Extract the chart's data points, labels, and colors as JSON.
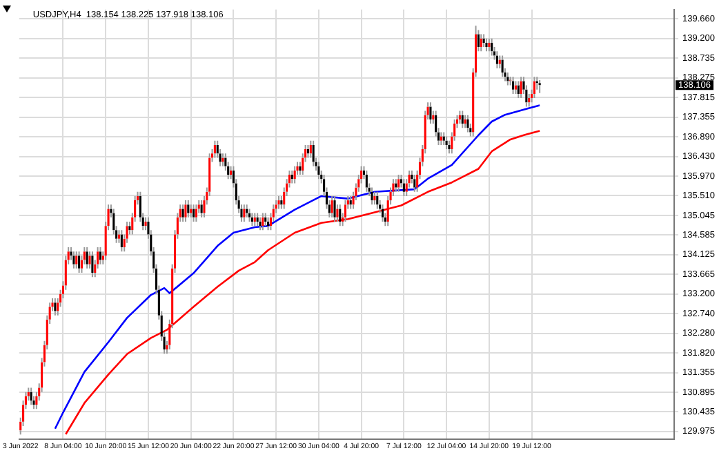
{
  "chart_data": {
    "type": "candlestick",
    "title": "USDJPY,H4  138.154 138.225 137.918 138.106",
    "categories": [
      "3 Jun 2022",
      null,
      null,
      null,
      null,
      null,
      null,
      null,
      null,
      null,
      null,
      null,
      null,
      null,
      null,
      null,
      "8 Jun 04:00",
      null,
      null,
      null,
      null,
      null,
      null,
      null,
      null,
      null,
      null,
      null,
      null,
      null,
      null,
      null,
      "10 Jun 20:00",
      null,
      null,
      null,
      null,
      null,
      null,
      null,
      null,
      null,
      null,
      null,
      null,
      null,
      null,
      null,
      "15 Jun 12:00",
      null,
      null,
      null,
      null,
      null,
      null,
      null,
      null,
      null,
      null,
      null,
      null,
      null,
      null,
      null,
      "20 Jun 04:00",
      null,
      null,
      null,
      null,
      null,
      null,
      null,
      null,
      null,
      null,
      null,
      null,
      null,
      null,
      null,
      "22 Jun 20:00",
      null,
      null,
      null,
      null,
      null,
      null,
      null,
      null,
      null,
      null,
      null,
      null,
      null,
      null,
      null,
      "27 Jun 12:00",
      null,
      null,
      null,
      null,
      null,
      null,
      null,
      null,
      null,
      null,
      null,
      null,
      null,
      null,
      null,
      "30 Jun 04:00",
      null,
      null,
      null,
      null,
      null,
      null,
      null,
      null,
      null,
      null,
      null,
      null,
      null,
      null,
      null,
      "4 Jul 20:00",
      null,
      null,
      null,
      null,
      null,
      null,
      null,
      null,
      null,
      null,
      null,
      null,
      null,
      null,
      null,
      "7 Jul 12:00",
      null,
      null,
      null,
      null,
      null,
      null,
      null,
      null,
      null,
      null,
      null,
      null,
      null,
      null,
      null,
      "12 Jul 04:00",
      null,
      null,
      null,
      null,
      null,
      null,
      null,
      null,
      null,
      null,
      null,
      null,
      null,
      null,
      null,
      "14 Jul 20:00",
      null,
      null,
      null,
      null,
      null,
      null,
      null,
      null,
      null,
      null,
      null,
      null,
      null,
      null,
      null,
      "19 Jul 12:00",
      null,
      null,
      null,
      null,
      null,
      null,
      null,
      null,
      null,
      null,
      null,
      null,
      null,
      null,
      null,
      null,
      null,
      null,
      null,
      null,
      null,
      null,
      null,
      null,
      null,
      null,
      null,
      null,
      null,
      null,
      null,
      null,
      null,
      null,
      null,
      null,
      null,
      null,
      null,
      null,
      null,
      null,
      null,
      null,
      null,
      null,
      null,
      null,
      null,
      null,
      null,
      null,
      null
    ],
    "ohlc": [
      [
        130.0,
        130.3,
        129.9,
        130.2
      ],
      [
        130.2,
        130.7,
        130.1,
        130.6
      ],
      [
        130.6,
        130.9,
        130.5,
        130.8
      ],
      [
        130.8,
        131.0,
        130.7,
        130.9
      ],
      [
        130.9,
        131.0,
        130.6,
        130.7
      ],
      [
        130.7,
        130.8,
        130.5,
        130.6
      ],
      [
        130.6,
        130.9,
        130.5,
        130.8
      ],
      [
        130.8,
        131.1,
        130.7,
        131.0
      ],
      [
        131.0,
        131.7,
        130.9,
        131.6
      ],
      [
        131.6,
        132.1,
        131.5,
        132.0
      ],
      [
        132.0,
        132.7,
        131.9,
        132.6
      ],
      [
        132.6,
        133.0,
        132.5,
        132.9
      ],
      [
        132.9,
        133.1,
        132.8,
        133.0
      ],
      [
        133.0,
        133.1,
        132.7,
        132.8
      ],
      [
        132.8,
        133.1,
        132.7,
        133.0
      ],
      [
        133.0,
        133.3,
        132.9,
        133.2
      ],
      [
        133.2,
        133.5,
        133.1,
        133.4
      ],
      [
        133.4,
        134.1,
        133.3,
        134.0
      ],
      [
        134.0,
        134.3,
        133.9,
        134.2
      ],
      [
        134.2,
        134.3,
        134.0,
        134.1
      ],
      [
        134.1,
        134.2,
        133.8,
        133.9
      ],
      [
        133.9,
        134.2,
        133.8,
        134.1
      ],
      [
        134.1,
        134.2,
        133.7,
        133.8
      ],
      [
        133.8,
        134.1,
        133.7,
        134.0
      ],
      [
        134.0,
        134.3,
        133.9,
        134.2
      ],
      [
        134.2,
        134.3,
        133.8,
        133.9
      ],
      [
        133.9,
        134.2,
        133.8,
        134.1
      ],
      [
        134.1,
        134.2,
        133.6,
        133.7
      ],
      [
        133.7,
        134.0,
        133.6,
        133.9
      ],
      [
        133.9,
        134.3,
        133.8,
        134.2
      ],
      [
        134.2,
        134.3,
        133.9,
        134.0
      ],
      [
        134.0,
        134.2,
        133.9,
        134.1
      ],
      [
        134.1,
        134.9,
        134.0,
        134.8
      ],
      [
        134.8,
        135.3,
        134.7,
        135.2
      ],
      [
        135.2,
        135.3,
        135.0,
        135.1
      ],
      [
        135.1,
        135.2,
        134.6,
        134.7
      ],
      [
        134.7,
        134.8,
        134.4,
        134.5
      ],
      [
        134.5,
        134.7,
        134.4,
        134.6
      ],
      [
        134.6,
        134.7,
        134.2,
        134.3
      ],
      [
        134.3,
        134.6,
        134.2,
        134.5
      ],
      [
        134.5,
        134.9,
        134.4,
        134.8
      ],
      [
        134.8,
        134.9,
        134.6,
        134.7
      ],
      [
        134.7,
        135.1,
        134.6,
        135.0
      ],
      [
        135.0,
        135.5,
        134.9,
        135.4
      ],
      [
        135.4,
        135.6,
        135.3,
        135.5
      ],
      [
        135.5,
        135.6,
        134.9,
        135.0
      ],
      [
        135.0,
        135.1,
        134.7,
        134.8
      ],
      [
        134.8,
        135.0,
        134.7,
        134.9
      ],
      [
        134.9,
        135.0,
        134.5,
        134.6
      ],
      [
        134.6,
        134.7,
        134.1,
        134.2
      ],
      [
        134.2,
        134.3,
        133.7,
        133.8
      ],
      [
        133.8,
        133.9,
        133.2,
        133.3
      ],
      [
        133.3,
        133.4,
        132.6,
        132.7
      ],
      [
        132.7,
        132.8,
        132.1,
        132.2
      ],
      [
        132.2,
        132.3,
        131.8,
        131.9
      ],
      [
        131.9,
        132.1,
        131.8,
        132.0
      ],
      [
        132.0,
        132.6,
        131.9,
        132.5
      ],
      [
        132.5,
        133.9,
        132.4,
        133.8
      ],
      [
        133.8,
        134.7,
        133.7,
        134.6
      ],
      [
        134.6,
        135.1,
        134.5,
        135.0
      ],
      [
        135.0,
        135.3,
        134.9,
        135.2
      ],
      [
        135.2,
        135.3,
        134.9,
        135.0
      ],
      [
        135.0,
        135.4,
        134.9,
        135.3
      ],
      [
        135.3,
        135.4,
        135.0,
        135.1
      ],
      [
        135.1,
        135.3,
        135.0,
        135.2
      ],
      [
        135.2,
        135.3,
        134.9,
        135.0
      ],
      [
        135.0,
        135.3,
        134.9,
        135.2
      ],
      [
        135.2,
        135.4,
        135.1,
        135.3
      ],
      [
        135.3,
        135.4,
        135.0,
        135.1
      ],
      [
        135.1,
        135.5,
        135.0,
        135.4
      ],
      [
        135.4,
        135.7,
        135.3,
        135.6
      ],
      [
        135.6,
        136.5,
        135.5,
        136.4
      ],
      [
        136.4,
        136.6,
        136.3,
        136.5
      ],
      [
        136.5,
        136.8,
        136.4,
        136.7
      ],
      [
        136.7,
        136.8,
        136.4,
        136.5
      ],
      [
        136.5,
        136.6,
        136.2,
        136.3
      ],
      [
        136.3,
        136.5,
        136.2,
        136.4
      ],
      [
        136.4,
        136.5,
        136.1,
        136.2
      ],
      [
        136.2,
        136.3,
        135.9,
        136.0
      ],
      [
        136.0,
        136.2,
        135.9,
        136.1
      ],
      [
        136.1,
        136.2,
        135.7,
        135.8
      ],
      [
        135.8,
        135.9,
        135.3,
        135.4
      ],
      [
        135.4,
        135.5,
        135.1,
        135.2
      ],
      [
        135.2,
        135.3,
        134.9,
        135.0
      ],
      [
        135.0,
        135.3,
        134.9,
        135.2
      ],
      [
        135.2,
        135.3,
        135.0,
        135.1
      ],
      [
        135.1,
        135.2,
        134.9,
        135.0
      ],
      [
        135.0,
        135.1,
        134.8,
        134.9
      ],
      [
        134.9,
        135.1,
        134.8,
        135.0
      ],
      [
        135.0,
        135.1,
        134.8,
        134.9
      ],
      [
        134.9,
        135.0,
        134.7,
        134.8
      ],
      [
        134.8,
        135.1,
        134.7,
        135.0
      ],
      [
        135.0,
        135.1,
        134.8,
        134.9
      ],
      [
        134.9,
        135.0,
        134.7,
        134.8
      ],
      [
        134.8,
        135.1,
        134.7,
        135.0
      ],
      [
        135.0,
        135.3,
        134.9,
        135.2
      ],
      [
        135.2,
        135.4,
        135.1,
        135.3
      ],
      [
        135.3,
        135.5,
        135.2,
        135.4
      ],
      [
        135.4,
        135.5,
        135.2,
        135.3
      ],
      [
        135.3,
        135.7,
        135.2,
        135.6
      ],
      [
        135.6,
        135.9,
        135.5,
        135.8
      ],
      [
        135.8,
        136.1,
        135.7,
        136.0
      ],
      [
        136.0,
        136.1,
        135.8,
        135.9
      ],
      [
        135.9,
        136.2,
        135.8,
        136.1
      ],
      [
        136.1,
        136.3,
        136.0,
        136.2
      ],
      [
        136.2,
        136.3,
        136.0,
        136.1
      ],
      [
        136.1,
        136.5,
        136.0,
        136.4
      ],
      [
        136.4,
        136.7,
        136.3,
        136.6
      ],
      [
        136.6,
        136.7,
        136.4,
        136.5
      ],
      [
        136.5,
        136.8,
        136.4,
        136.7
      ],
      [
        136.7,
        136.8,
        136.2,
        136.3
      ],
      [
        136.3,
        136.4,
        136.1,
        136.2
      ],
      [
        136.2,
        136.3,
        135.9,
        136.0
      ],
      [
        136.0,
        136.1,
        135.8,
        135.9
      ],
      [
        135.9,
        136.0,
        135.5,
        135.6
      ],
      [
        135.6,
        135.7,
        135.2,
        135.3
      ],
      [
        135.3,
        135.4,
        135.0,
        135.1
      ],
      [
        135.1,
        135.5,
        135.0,
        135.4
      ],
      [
        135.4,
        135.5,
        134.9,
        135.0
      ],
      [
        135.0,
        135.3,
        134.9,
        135.2
      ],
      [
        135.2,
        135.3,
        134.8,
        134.9
      ],
      [
        134.9,
        135.1,
        134.8,
        135.0
      ],
      [
        135.0,
        135.4,
        134.9,
        135.3
      ],
      [
        135.3,
        135.5,
        135.2,
        135.4
      ],
      [
        135.4,
        135.5,
        135.2,
        135.3
      ],
      [
        135.3,
        135.6,
        135.2,
        135.5
      ],
      [
        135.5,
        135.8,
        135.4,
        135.7
      ],
      [
        135.7,
        136.0,
        135.6,
        135.9
      ],
      [
        135.9,
        136.2,
        135.8,
        136.1
      ],
      [
        136.1,
        136.2,
        135.9,
        136.0
      ],
      [
        136.0,
        136.1,
        135.6,
        135.7
      ],
      [
        135.7,
        135.8,
        135.5,
        135.6
      ],
      [
        135.6,
        135.7,
        135.3,
        135.4
      ],
      [
        135.4,
        135.6,
        135.3,
        135.5
      ],
      [
        135.5,
        135.6,
        135.2,
        135.3
      ],
      [
        135.3,
        135.4,
        135.1,
        135.2
      ],
      [
        135.2,
        135.3,
        134.9,
        135.0
      ],
      [
        135.0,
        135.1,
        134.8,
        134.9
      ],
      [
        134.9,
        135.5,
        134.8,
        135.4
      ],
      [
        135.4,
        135.7,
        135.3,
        135.6
      ],
      [
        135.6,
        135.9,
        135.5,
        135.8
      ],
      [
        135.8,
        135.9,
        135.6,
        135.7
      ],
      [
        135.7,
        136.0,
        135.6,
        135.9
      ],
      [
        135.9,
        136.0,
        135.7,
        135.8
      ],
      [
        135.8,
        135.9,
        135.5,
        135.6
      ],
      [
        135.6,
        135.9,
        135.5,
        135.8
      ],
      [
        135.8,
        136.1,
        135.7,
        136.0
      ],
      [
        136.0,
        136.1,
        135.8,
        135.9
      ],
      [
        135.9,
        136.0,
        135.6,
        135.7
      ],
      [
        135.7,
        136.1,
        135.6,
        136.0
      ],
      [
        136.0,
        136.4,
        135.9,
        136.3
      ],
      [
        136.3,
        136.7,
        136.2,
        136.6
      ],
      [
        136.6,
        137.5,
        136.5,
        137.4
      ],
      [
        137.4,
        137.7,
        137.3,
        137.6
      ],
      [
        137.6,
        137.7,
        137.2,
        137.3
      ],
      [
        137.3,
        137.5,
        137.2,
        137.4
      ],
      [
        137.4,
        137.5,
        136.9,
        137.0
      ],
      [
        137.0,
        137.1,
        136.7,
        136.8
      ],
      [
        136.8,
        137.0,
        136.7,
        136.9
      ],
      [
        136.9,
        137.0,
        136.7,
        136.8
      ],
      [
        136.8,
        136.9,
        136.6,
        136.7
      ],
      [
        136.7,
        136.8,
        136.5,
        136.6
      ],
      [
        136.6,
        137.0,
        136.5,
        136.9
      ],
      [
        136.9,
        137.3,
        136.8,
        137.2
      ],
      [
        137.2,
        137.4,
        137.1,
        137.3
      ],
      [
        137.3,
        137.5,
        137.2,
        137.4
      ],
      [
        137.4,
        137.5,
        137.1,
        137.2
      ],
      [
        137.2,
        137.4,
        137.1,
        137.3
      ],
      [
        137.3,
        137.4,
        137.0,
        137.1
      ],
      [
        137.1,
        137.2,
        136.9,
        137.0
      ],
      [
        137.0,
        138.5,
        136.9,
        138.4
      ],
      [
        138.4,
        139.5,
        138.3,
        139.3
      ],
      [
        139.3,
        139.4,
        138.9,
        139.0
      ],
      [
        139.0,
        139.3,
        138.9,
        139.2
      ],
      [
        139.2,
        139.3,
        139.0,
        139.1
      ],
      [
        139.1,
        139.2,
        138.9,
        139.0
      ],
      [
        139.0,
        139.2,
        138.9,
        139.1
      ],
      [
        139.1,
        139.2,
        138.8,
        138.9
      ],
      [
        138.9,
        139.0,
        138.7,
        138.8
      ],
      [
        138.8,
        138.9,
        138.5,
        138.6
      ],
      [
        138.6,
        138.8,
        138.5,
        138.7
      ],
      [
        138.7,
        138.8,
        138.3,
        138.4
      ],
      [
        138.4,
        138.5,
        138.2,
        138.3
      ],
      [
        138.3,
        138.4,
        138.1,
        138.2
      ],
      [
        138.2,
        138.3,
        138.1,
        138.2
      ],
      [
        138.2,
        138.3,
        137.9,
        138.0
      ],
      [
        138.0,
        138.2,
        137.9,
        138.1
      ],
      [
        138.1,
        138.2,
        137.8,
        137.9
      ],
      [
        137.9,
        138.3,
        137.8,
        138.2
      ],
      [
        138.2,
        138.3,
        137.9,
        138.0
      ],
      [
        138.0,
        138.1,
        137.6,
        137.7
      ],
      [
        137.7,
        137.9,
        137.6,
        137.8
      ],
      [
        137.8,
        138.0,
        137.7,
        137.9
      ],
      [
        137.9,
        138.3,
        137.8,
        138.2
      ],
      [
        138.2,
        138.3,
        138.0,
        138.154
      ],
      [
        138.154,
        138.225,
        137.918,
        138.106
      ],
      null,
      null,
      null,
      null,
      null,
      null,
      null,
      null,
      null,
      null,
      null,
      null,
      null,
      null,
      null,
      null,
      null,
      null,
      null,
      null,
      null,
      null,
      null,
      null,
      null,
      null,
      null,
      null,
      null,
      null,
      null,
      null,
      null,
      null,
      null,
      null,
      null,
      null,
      null,
      null,
      null,
      null,
      null,
      null,
      null,
      null,
      null,
      null,
      null,
      null
    ],
    "series": [
      {
        "type": "line",
        "color": "#0000ff",
        "values": [
          null,
          null,
          null,
          null,
          null,
          null,
          null,
          null,
          null,
          null,
          null,
          null,
          null,
          130.04,
          null,
          null,
          130.42,
          null,
          null,
          null,
          null,
          null,
          null,
          null,
          131.37,
          null,
          null,
          null,
          null,
          null,
          null,
          null,
          null,
          132.07,
          null,
          null,
          null,
          null,
          null,
          null,
          132.64,
          null,
          null,
          null,
          null,
          null,
          null,
          null,
          null,
          133.18,
          null,
          null,
          null,
          null,
          133.34,
          null,
          133.22,
          null,
          null,
          null,
          null,
          null,
          null,
          null,
          null,
          133.69,
          null,
          null,
          null,
          null,
          null,
          null,
          null,
          null,
          134.33,
          null,
          null,
          null,
          null,
          null,
          134.64,
          null,
          null,
          null,
          null,
          null,
          null,
          null,
          134.77,
          null,
          null,
          null,
          null,
          134.8,
          null,
          null,
          null,
          null,
          null,
          null,
          null,
          null,
          null,
          135.18,
          null,
          null,
          null,
          null,
          null,
          null,
          null,
          null,
          null,
          135.5,
          null,
          null,
          null,
          null,
          null,
          null,
          null,
          null,
          null,
          135.44,
          null,
          null,
          null,
          null,
          null,
          null,
          null,
          null,
          null,
          135.6,
          null,
          null,
          null,
          null,
          null,
          null,
          null,
          null,
          null,
          null,
          null,
          null,
          null,
          null,
          135.66,
          null,
          null,
          null,
          null,
          135.91,
          null,
          null,
          null,
          null,
          null,
          null,
          null,
          null,
          136.23,
          null,
          null,
          null,
          null,
          null,
          null,
          null,
          null,
          null,
          136.93,
          null,
          null,
          null,
          null,
          137.25,
          null,
          null,
          null,
          null,
          137.41,
          null,
          null,
          null,
          null,
          null,
          null,
          137.53,
          null,
          null,
          null,
          null,
          null,
          137.63,
          null,
          null,
          null,
          null,
          null,
          null,
          null,
          null,
          null,
          null,
          null,
          null,
          null,
          null,
          null,
          null,
          null,
          null,
          null,
          null,
          null,
          null,
          null,
          null,
          null,
          null,
          null,
          null,
          null,
          null,
          null,
          null,
          null,
          null,
          null,
          null,
          null,
          null,
          null,
          null,
          null,
          null,
          null,
          null,
          null,
          null,
          null,
          null,
          null,
          null
        ]
      },
      {
        "type": "line",
        "color": "#ff0000",
        "values": [
          null,
          null,
          null,
          null,
          null,
          null,
          null,
          null,
          null,
          null,
          null,
          null,
          null,
          null,
          null,
          null,
          null,
          129.91,
          null,
          null,
          null,
          null,
          null,
          null,
          130.64,
          null,
          null,
          null,
          null,
          null,
          null,
          null,
          null,
          131.31,
          null,
          null,
          null,
          null,
          null,
          null,
          131.79,
          null,
          null,
          null,
          null,
          null,
          null,
          null,
          null,
          132.17,
          null,
          null,
          null,
          null,
          null,
          132.36,
          null,
          null,
          null,
          null,
          null,
          null,
          null,
          null,
          null,
          132.9,
          null,
          null,
          null,
          null,
          null,
          null,
          null,
          null,
          133.37,
          null,
          null,
          null,
          null,
          null,
          null,
          null,
          133.75,
          null,
          null,
          null,
          null,
          null,
          133.95,
          null,
          null,
          null,
          null,
          134.23,
          null,
          null,
          null,
          null,
          null,
          null,
          null,
          null,
          null,
          134.64,
          null,
          null,
          null,
          null,
          null,
          null,
          null,
          null,
          null,
          134.87,
          null,
          null,
          null,
          null,
          null,
          null,
          null,
          null,
          null,
          134.96,
          null,
          null,
          null,
          null,
          null,
          null,
          null,
          null,
          null,
          135.12,
          null,
          null,
          null,
          null,
          null,
          null,
          null,
          null,
          null,
          135.28,
          null,
          null,
          null,
          null,
          null,
          null,
          null,
          null,
          null,
          135.6,
          null,
          null,
          null,
          null,
          null,
          null,
          null,
          null,
          135.82,
          null,
          null,
          null,
          null,
          null,
          null,
          null,
          null,
          null,
          136.14,
          null,
          null,
          null,
          null,
          136.55,
          null,
          null,
          null,
          null,
          null,
          null,
          136.83,
          null,
          null,
          null,
          null,
          136.93,
          null,
          null,
          null,
          null,
          null,
          137.03,
          null,
          null,
          null,
          null,
          null,
          null,
          null,
          null,
          null,
          null,
          null,
          null,
          null,
          null,
          null,
          null,
          null,
          null,
          null,
          null,
          null,
          null,
          null,
          null,
          null,
          null,
          null,
          null,
          null,
          null,
          null,
          null,
          null,
          null,
          null,
          null,
          null,
          null,
          null,
          null,
          null,
          null,
          null,
          null,
          null,
          null,
          null,
          null,
          null,
          null
        ]
      }
    ],
    "ylim": [
      129.8,
      139.88
    ],
    "yticks": [
      {
        "value": 129.975,
        "label": "129.975"
      },
      {
        "value": 130.435,
        "label": "130.435"
      },
      {
        "value": 130.895,
        "label": "130.895"
      },
      {
        "value": 131.355,
        "label": "131.355"
      },
      {
        "value": 131.82,
        "label": "131.820"
      },
      {
        "value": 132.28,
        "label": "132.280"
      },
      {
        "value": 132.74,
        "label": "132.740"
      },
      {
        "value": 133.2,
        "label": "133.200"
      },
      {
        "value": 133.665,
        "label": "133.665"
      },
      {
        "value": 134.125,
        "label": "134.125"
      },
      {
        "value": 134.585,
        "label": "134.585"
      },
      {
        "value": 135.045,
        "label": "135.045"
      },
      {
        "value": 135.51,
        "label": "135.510"
      },
      {
        "value": 135.97,
        "label": "135.970"
      },
      {
        "value": 136.43,
        "label": "136.430"
      },
      {
        "value": 136.89,
        "label": "136.890"
      },
      {
        "value": 137.355,
        "label": "137.355"
      },
      {
        "value": 137.815,
        "label": "137.815"
      },
      {
        "value": 138.275,
        "label": "138.275"
      },
      {
        "value": 138.735,
        "label": "138.735"
      },
      {
        "value": 139.2,
        "label": "139.200"
      },
      {
        "value": 139.66,
        "label": "139.660"
      }
    ],
    "grid": true,
    "annotations": [
      "138.106"
    ]
  }
}
